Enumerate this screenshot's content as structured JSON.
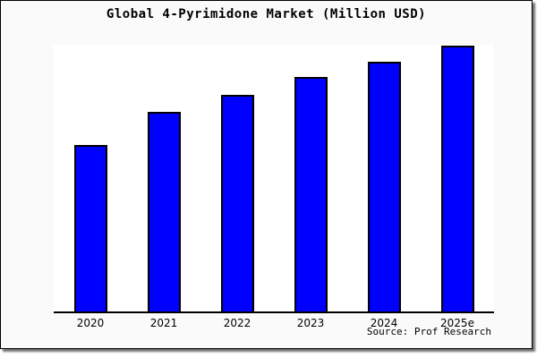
{
  "title": "Global 4-Pyrimidone Market (Million USD)",
  "source_note": "Source: Prof Research",
  "colors": {
    "bar_fill": "#0000ff",
    "bar_border": "#000000",
    "axis": "#000000",
    "plot_background": "#ffffff",
    "card_background": "#fafafa",
    "text": "#000000"
  },
  "chart_data": {
    "type": "bar",
    "title": "Global 4-Pyrimidone Market (Million USD)",
    "categories": [
      "2020",
      "2021",
      "2022",
      "2023",
      "2024",
      "2025e"
    ],
    "values": [
      188,
      225,
      244,
      264,
      281,
      299
    ],
    "value_units": "relative (y-axis unlabeled; values are bar heights on a 0-300 scale)",
    "xlabel": "",
    "ylabel": "",
    "ylim": [
      0,
      300
    ],
    "grid": false,
    "legend": false,
    "annotations": [
      "Source: Prof Research"
    ]
  }
}
